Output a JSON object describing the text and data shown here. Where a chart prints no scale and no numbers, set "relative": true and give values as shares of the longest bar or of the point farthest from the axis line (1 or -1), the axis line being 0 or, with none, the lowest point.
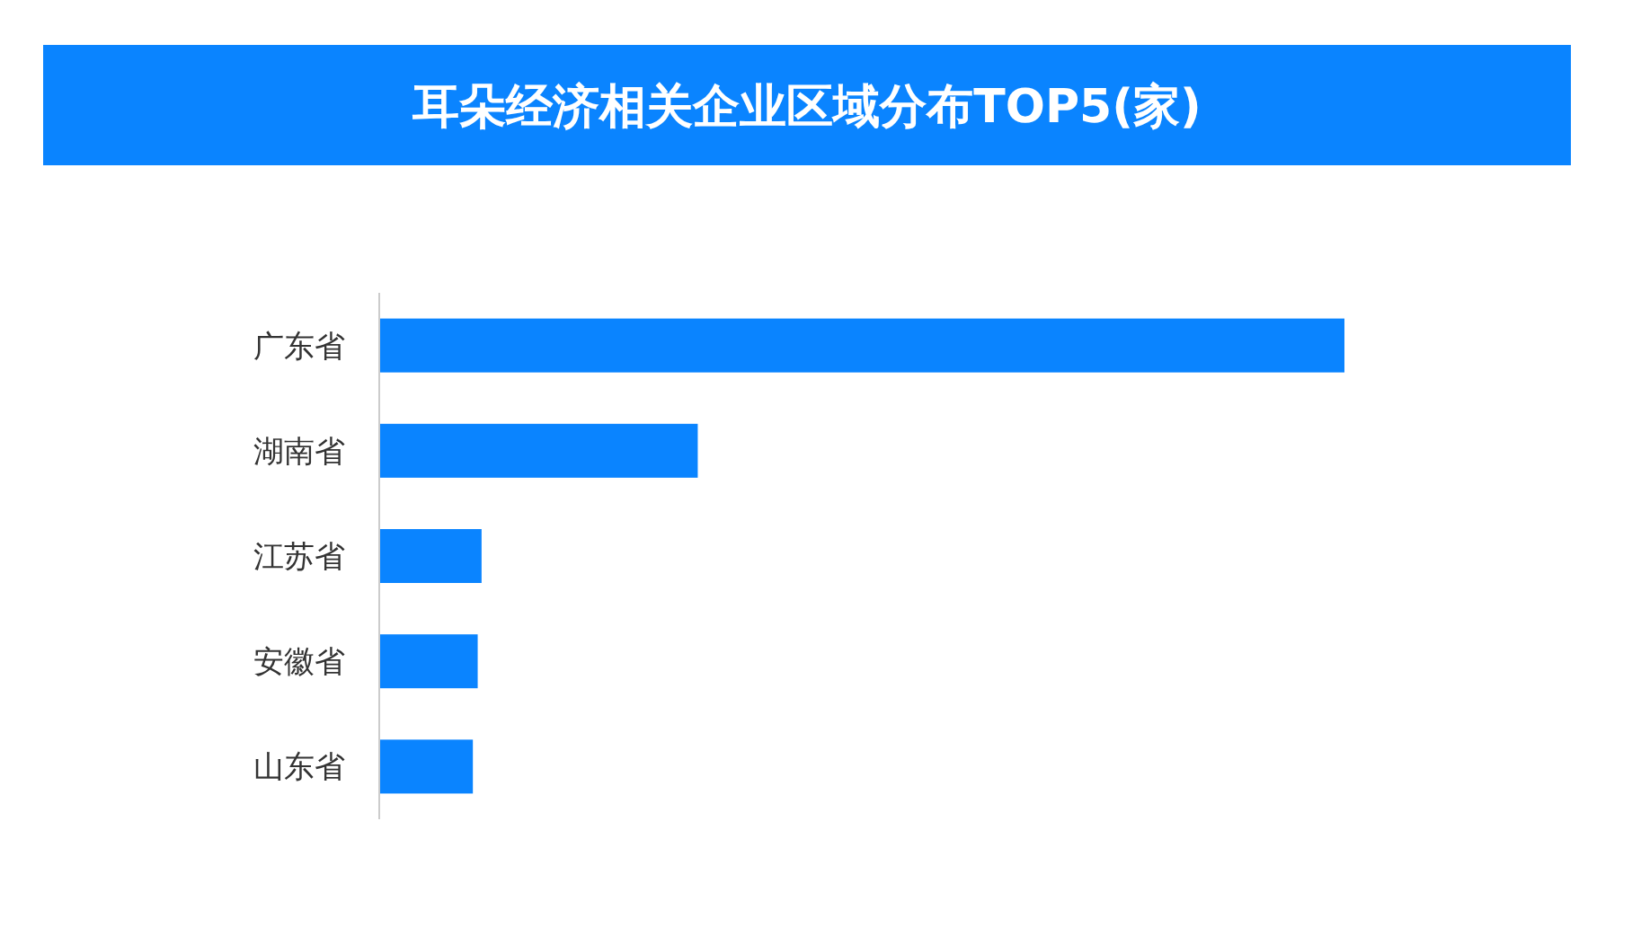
{
  "chart_data": {
    "type": "bar",
    "orientation": "horizontal",
    "relative": true,
    "title": "耳朵经济相关企业区域分布TOP5(家)",
    "categories": [
      "广东省",
      "湖南省",
      "江苏省",
      "安徽省",
      "山东省"
    ],
    "values": [
      1,
      0.33,
      0.106,
      0.102,
      0.097
    ],
    "color": "#0a84ff"
  }
}
